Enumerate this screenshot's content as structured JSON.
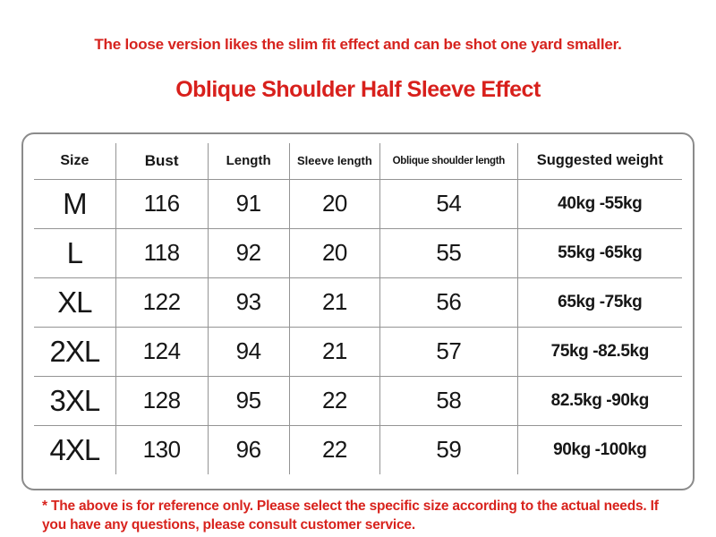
{
  "header": {
    "subtitle": "The loose version likes the slim fit effect and can be shot one yard smaller.",
    "title": "Oblique Shoulder Half Sleeve Effect"
  },
  "footer": {
    "note": "* The above is for reference only. Please select the specific size according to the actual needs. If you have any questions, please consult customer service."
  },
  "colors": {
    "accent_red": "#d8231d",
    "table_border_gray": "#8b8b8b",
    "grid_line_gray": "#949494",
    "text_black": "#161616",
    "background": "#ffffff"
  },
  "chart_data": {
    "type": "table",
    "title": "Oblique Shoulder Half Sleeve Effect",
    "columns": [
      "Size",
      "Bust",
      "Length",
      "Sleeve length",
      "Oblique shoulder length",
      "Suggested weight"
    ],
    "rows": [
      [
        "M",
        "116",
        "91",
        "20",
        "54",
        "40kg -55kg"
      ],
      [
        "L",
        "118",
        "92",
        "20",
        "55",
        "55kg -65kg"
      ],
      [
        "XL",
        "122",
        "93",
        "21",
        "56",
        "65kg -75kg"
      ],
      [
        "2XL",
        "124",
        "94",
        "21",
        "57",
        "75kg -82.5kg"
      ],
      [
        "3XL",
        "128",
        "95",
        "22",
        "58",
        "82.5kg -90kg"
      ],
      [
        "4XL",
        "130",
        "96",
        "22",
        "59",
        "90kg -100kg"
      ]
    ],
    "layout": {
      "grid": "rounded outer border, thin gray inner dividers",
      "header_row": true
    }
  }
}
